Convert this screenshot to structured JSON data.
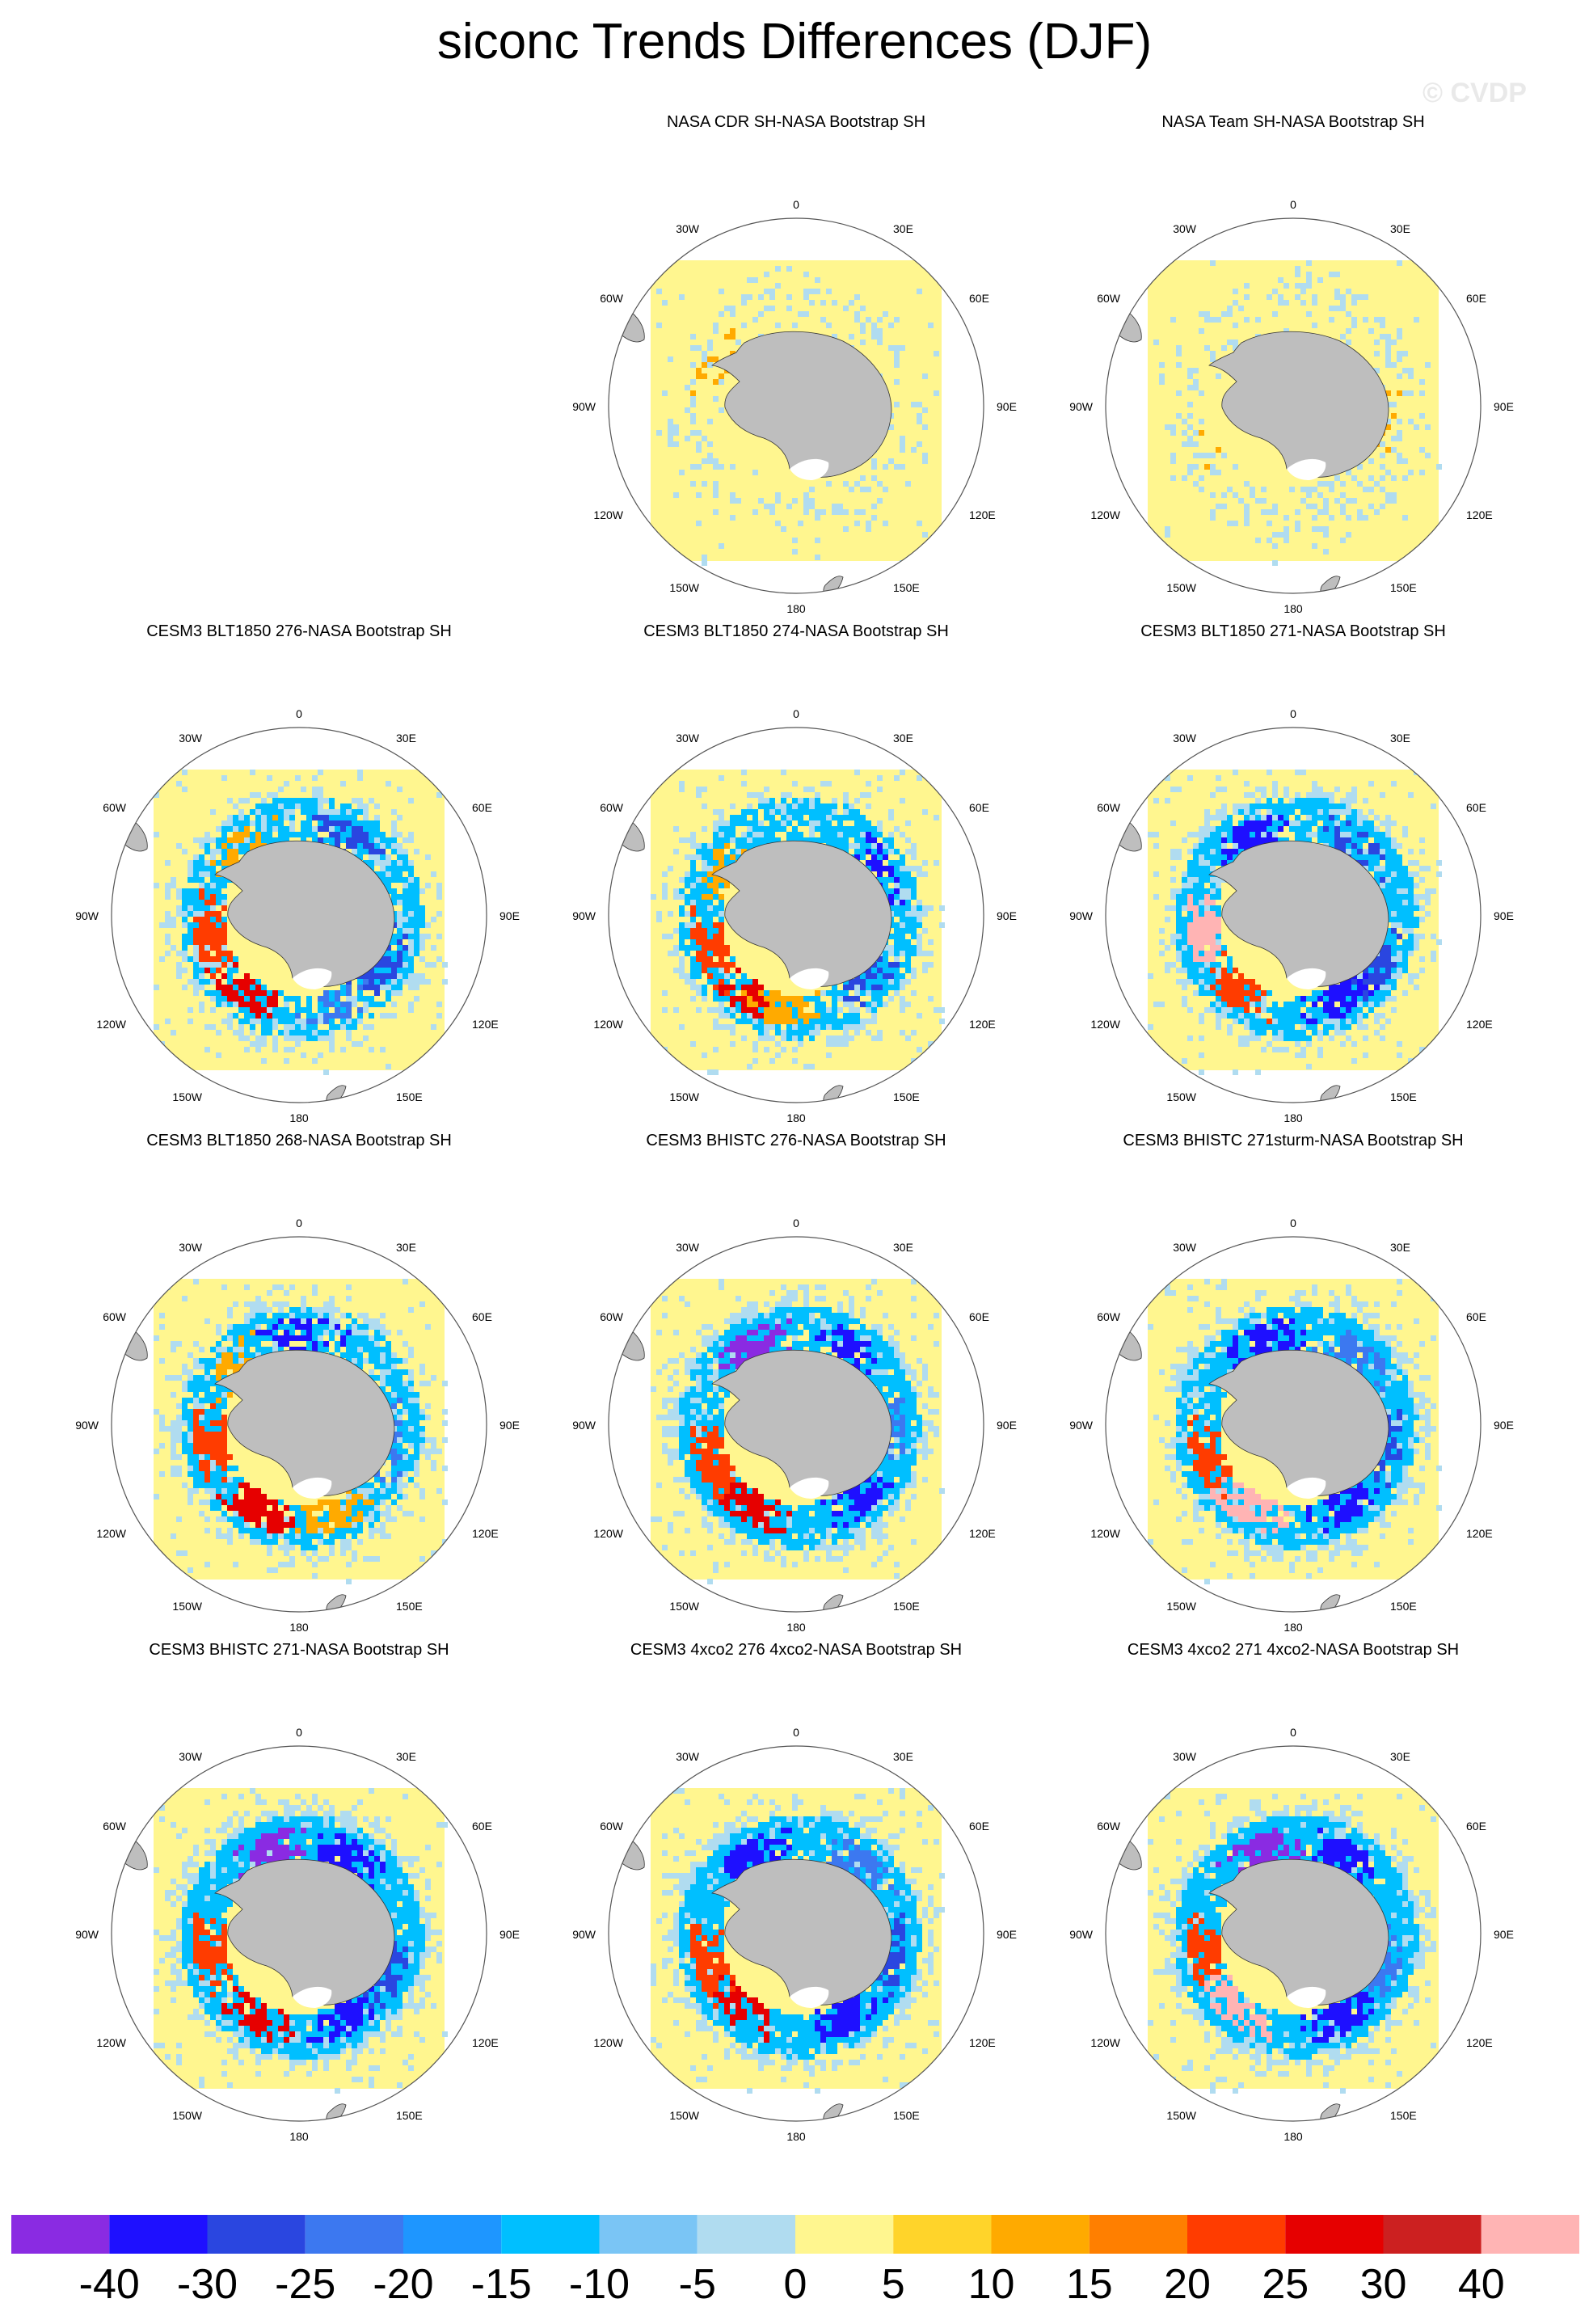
{
  "title": "siconc Trends Differences (DJF)",
  "watermark": "© CVDP",
  "lon_labels": {
    "top": "0",
    "bottom": "180",
    "r30e": "30E",
    "r60e": "60E",
    "r90e": "90E",
    "r120e": "120E",
    "r150e": "150E",
    "l30w": "30W",
    "l60w": "60W",
    "l90w": "90W",
    "l120w": "120W",
    "l150w": "150W"
  },
  "colors": {
    "background_field": "#fff68f",
    "land": "#bebebe",
    "coast": "#333333"
  },
  "panels": [
    {
      "title": "",
      "empty": true
    },
    {
      "title": "NASA CDR SH-NASA Bootstrap SH",
      "empty": false
    },
    {
      "title": "NASA Team SH-NASA Bootstrap SH",
      "empty": false
    },
    {
      "title": "CESM3 BLT1850 276-NASA Bootstrap SH",
      "empty": false
    },
    {
      "title": "CESM3 BLT1850 274-NASA Bootstrap SH",
      "empty": false
    },
    {
      "title": "CESM3 BLT1850 271-NASA Bootstrap SH",
      "empty": false
    },
    {
      "title": "CESM3 BLT1850 268-NASA Bootstrap SH",
      "empty": false
    },
    {
      "title": "CESM3 BHISTC 276-NASA Bootstrap SH",
      "empty": false
    },
    {
      "title": "CESM3 BHISTC 271sturm-NASA Bootstrap SH",
      "empty": false
    },
    {
      "title": "CESM3 BHISTC 271-NASA Bootstrap SH",
      "empty": false
    },
    {
      "title": "CESM3 4xco2 276 4xco2-NASA Bootstrap SH",
      "empty": false
    },
    {
      "title": "CESM3 4xco2 271 4xco2-NASA Bootstrap SH",
      "empty": false
    }
  ],
  "colorbar": {
    "colors": [
      "#8a2be2",
      "#1e10ff",
      "#2a46e0",
      "#3c78f0",
      "#1e96ff",
      "#00bfff",
      "#7ac5f5",
      "#b0dcf0",
      "#fff68f",
      "#ffd42a",
      "#ffaa00",
      "#ff7f00",
      "#ff3c00",
      "#e60000",
      "#cc2020",
      "#ffb4b4"
    ],
    "labels": [
      "-40",
      "-30",
      "-25",
      "-20",
      "-15",
      "-10",
      "-5",
      "0",
      "5",
      "10",
      "15",
      "20",
      "25",
      "30",
      "40"
    ]
  }
}
